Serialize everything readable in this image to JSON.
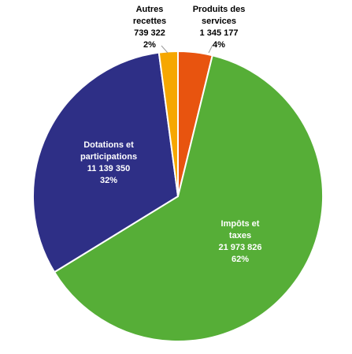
{
  "chart_data": {
    "type": "pie",
    "title": "",
    "slices": [
      {
        "label_lines": [
          "Produits des",
          "services"
        ],
        "value": 1345177,
        "value_text": "1 345 177",
        "percent_text": "4%",
        "color": "#E8540F"
      },
      {
        "label_lines": [
          "Impôts et",
          "taxes"
        ],
        "value": 21973826,
        "value_text": "21 973 826",
        "percent_text": "62%",
        "color": "#56AE37"
      },
      {
        "label_lines": [
          "Dotations et",
          "participations"
        ],
        "value": 11139350,
        "value_text": "11 139 350",
        "percent_text": "32%",
        "color": "#2E2F86"
      },
      {
        "label_lines": [
          "Autres",
          "recettes"
        ],
        "value": 739322,
        "value_text": "739 322",
        "percent_text": "2%",
        "color": "#F6A700"
      }
    ],
    "start": "12 o'clock",
    "direction": "clockwise",
    "legend": "none"
  }
}
